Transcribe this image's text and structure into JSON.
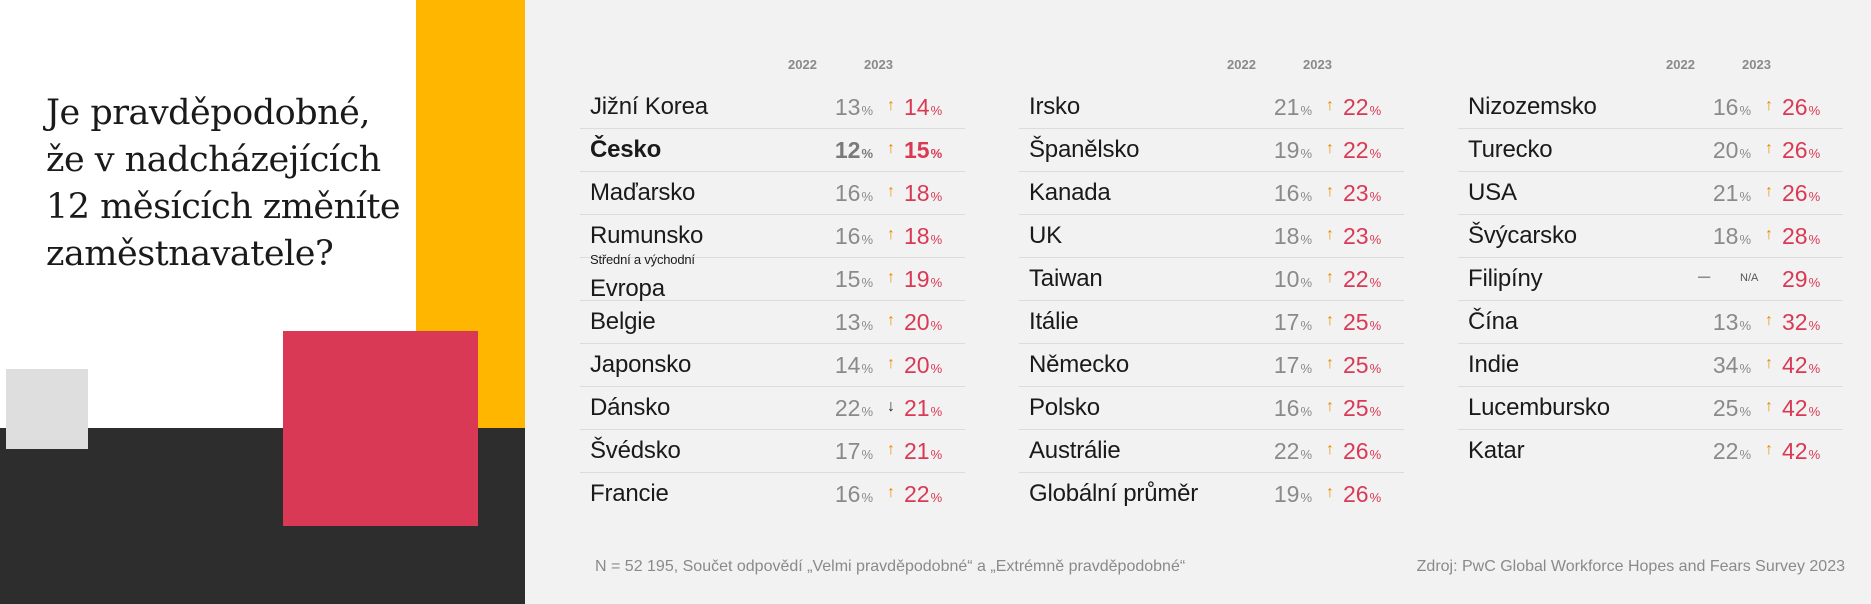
{
  "question": [
    "Je pravděpodobné,",
    "že v nadcházejících",
    "12 měsících změníte",
    "zaměstnavatele?"
  ],
  "year_labels": [
    "2022",
    "2023"
  ],
  "percent_sign": "%",
  "footnote": "N = 52 195, Součet odpovědí „Velmi pravděpodobné“ a „Extrémně pravděpodobné“",
  "source": "Zdroj: PwC Global Workforce Hopes and Fears Survey 2023",
  "colors": {
    "accent_2023": "#d93954",
    "arrow_up": "#eb8c00",
    "yellow": "#ffb600",
    "dark": "#2d2d2d"
  },
  "chart_data": {
    "type": "table",
    "columns": [
      "2022",
      "2023"
    ],
    "groups": [
      {
        "rows": [
          {
            "country": "Jižní Korea",
            "v2022": "13",
            "v2023": "14",
            "trend": "up"
          },
          {
            "country": "Česko",
            "v2022": "12",
            "v2023": "15",
            "trend": "up",
            "highlight": true
          },
          {
            "country": "Maďarsko",
            "v2022": "16",
            "v2023": "18",
            "trend": "up"
          },
          {
            "country": "Rumunsko",
            "v2022": "16",
            "v2023": "18",
            "trend": "up"
          },
          {
            "country": "Evropa",
            "sub": "Střední a východní",
            "v2022": "15",
            "v2023": "19",
            "trend": "up"
          },
          {
            "country": "Belgie",
            "v2022": "13",
            "v2023": "20",
            "trend": "up"
          },
          {
            "country": "Japonsko",
            "v2022": "14",
            "v2023": "20",
            "trend": "up"
          },
          {
            "country": "Dánsko",
            "v2022": "22",
            "v2023": "21",
            "trend": "down"
          },
          {
            "country": "Švédsko",
            "v2022": "17",
            "v2023": "21",
            "trend": "up"
          },
          {
            "country": "Francie",
            "v2022": "16",
            "v2023": "22",
            "trend": "up"
          }
        ]
      },
      {
        "rows": [
          {
            "country": "Irsko",
            "v2022": "21",
            "v2023": "22",
            "trend": "up"
          },
          {
            "country": "Španělsko",
            "v2022": "19",
            "v2023": "22",
            "trend": "up"
          },
          {
            "country": "Kanada",
            "v2022": "16",
            "v2023": "23",
            "trend": "up"
          },
          {
            "country": "UK",
            "v2022": "18",
            "v2023": "23",
            "trend": "up"
          },
          {
            "country": "Taiwan",
            "v2022": "10",
            "v2023": "22",
            "trend": "up"
          },
          {
            "country": "Itálie",
            "v2022": "17",
            "v2023": "25",
            "trend": "up"
          },
          {
            "country": "Německo",
            "v2022": "17",
            "v2023": "25",
            "trend": "up"
          },
          {
            "country": "Polsko",
            "v2022": "16",
            "v2023": "25",
            "trend": "up"
          },
          {
            "country": "Austrálie",
            "v2022": "22",
            "v2023": "26",
            "trend": "up"
          },
          {
            "country": "Globální průměr",
            "v2022": "19",
            "v2023": "26",
            "trend": "up"
          }
        ]
      },
      {
        "rows": [
          {
            "country": "Nizozemsko",
            "v2022": "16",
            "v2023": "26",
            "trend": "up"
          },
          {
            "country": "Turecko",
            "v2022": "20",
            "v2023": "26",
            "trend": "up"
          },
          {
            "country": "USA",
            "v2022": "21",
            "v2023": "26",
            "trend": "up"
          },
          {
            "country": "Švýcarsko",
            "v2022": "18",
            "v2023": "28",
            "trend": "up"
          },
          {
            "country": "Filipíny",
            "v2022": "–",
            "na": "N/A",
            "v2023": "29",
            "trend": "none"
          },
          {
            "country": "Čína",
            "v2022": "13",
            "v2023": "32",
            "trend": "up"
          },
          {
            "country": "Indie",
            "v2022": "34",
            "v2023": "42",
            "trend": "up"
          },
          {
            "country": "Lucembursko",
            "v2022": "25",
            "v2023": "42",
            "trend": "up"
          },
          {
            "country": "Katar",
            "v2022": "22",
            "v2023": "42",
            "trend": "up"
          }
        ]
      }
    ]
  }
}
